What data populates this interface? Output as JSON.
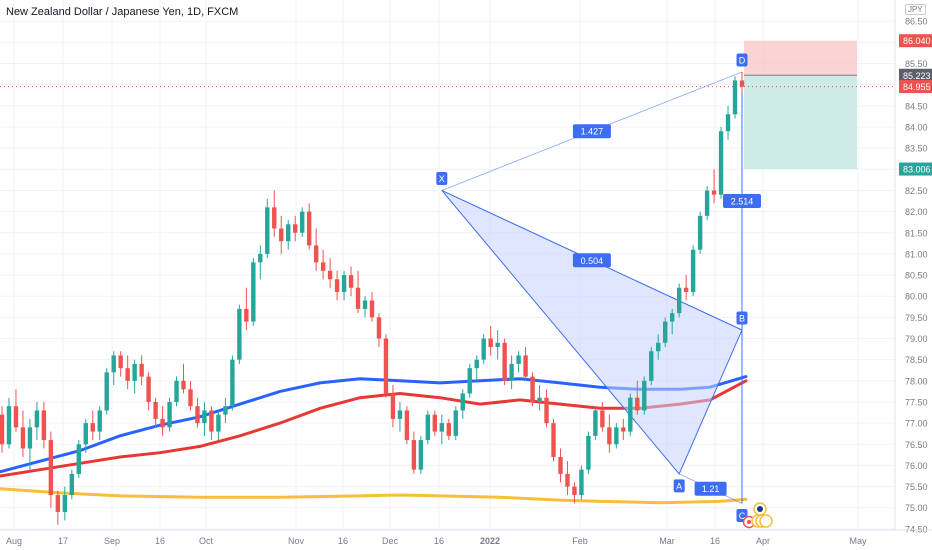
{
  "header": {
    "title": "New Zealand Dollar / Japanese Yen, 1D, FXCM",
    "currency_badge": "JPY"
  },
  "colors": {
    "up": "#26a69a",
    "down": "#ef5350",
    "ma_fast": "#2962ff",
    "ma_mid": "#e53935",
    "ma_slow": "#f6be3b",
    "pattern_fill": "#c7d2fe",
    "pattern_stroke": "#3d6df5",
    "stop_zone": "#f8c4c4",
    "target_zone": "#c3e6df"
  },
  "chart_data": {
    "type": "candlestick",
    "symbol": "NZDJPY",
    "timeframe": "1D",
    "x_tick_labels": [
      "Aug",
      "17",
      "Sep",
      "16",
      "Oct",
      "Nov",
      "16",
      "Dec",
      "16",
      "2022",
      "Feb",
      "Mar",
      "16",
      "Apr",
      "May"
    ],
    "y_tick_labels": [
      "86.50",
      "86.00",
      "85.50",
      "85.00",
      "84.50",
      "84.00",
      "83.50",
      "83.00",
      "82.50",
      "82.00",
      "81.50",
      "81.00",
      "80.50",
      "80.00",
      "79.50",
      "79.00",
      "78.50",
      "78.00",
      "77.50",
      "77.00",
      "76.50",
      "76.00",
      "75.50",
      "75.00",
      "74.50"
    ],
    "ylim": [
      74.45,
      86.6
    ],
    "price_labels": [
      {
        "value": "86.040",
        "role": "stop"
      },
      {
        "value": "85.223",
        "role": "entry"
      },
      {
        "value": "84.955",
        "role": "last"
      },
      {
        "value": "83.006",
        "role": "target"
      }
    ],
    "pattern": {
      "points": [
        {
          "label": "X",
          "value": 82.5
        },
        {
          "label": "A",
          "value": 75.8
        },
        {
          "label": "B",
          "value": 79.2
        },
        {
          "label": "C",
          "value": 75.1
        },
        {
          "label": "D",
          "value": 85.3
        }
      ],
      "ratios": [
        {
          "label": "1.427",
          "between": "X-D"
        },
        {
          "label": "0.504",
          "between": "X-B"
        },
        {
          "label": "1.21",
          "between": "A-C"
        },
        {
          "label": "2.514",
          "between": "B-D"
        }
      ]
    },
    "moving_averages": [
      {
        "color": "ma_fast",
        "points": [
          [
            0,
            75.85
          ],
          [
            40,
            76.1
          ],
          [
            80,
            76.35
          ],
          [
            120,
            76.7
          ],
          [
            160,
            76.95
          ],
          [
            200,
            77.15
          ],
          [
            240,
            77.45
          ],
          [
            280,
            77.75
          ],
          [
            320,
            77.95
          ],
          [
            360,
            78.05
          ],
          [
            400,
            78.0
          ],
          [
            440,
            77.95
          ],
          [
            480,
            78.0
          ],
          [
            520,
            78.05
          ],
          [
            560,
            77.95
          ],
          [
            600,
            77.85
          ],
          [
            640,
            77.8
          ],
          [
            680,
            77.8
          ],
          [
            710,
            77.85
          ],
          [
            746,
            78.1
          ]
        ]
      },
      {
        "color": "ma_mid",
        "points": [
          [
            0,
            75.75
          ],
          [
            40,
            75.9
          ],
          [
            80,
            76.05
          ],
          [
            120,
            76.2
          ],
          [
            160,
            76.3
          ],
          [
            200,
            76.45
          ],
          [
            240,
            76.7
          ],
          [
            280,
            77.0
          ],
          [
            320,
            77.35
          ],
          [
            360,
            77.6
          ],
          [
            400,
            77.7
          ],
          [
            440,
            77.6
          ],
          [
            480,
            77.45
          ],
          [
            520,
            77.55
          ],
          [
            560,
            77.45
          ],
          [
            600,
            77.35
          ],
          [
            640,
            77.35
          ],
          [
            680,
            77.45
          ],
          [
            710,
            77.55
          ],
          [
            746,
            78.0
          ]
        ]
      },
      {
        "color": "ma_slow",
        "points": [
          [
            0,
            75.45
          ],
          [
            60,
            75.35
          ],
          [
            120,
            75.28
          ],
          [
            200,
            75.25
          ],
          [
            280,
            75.25
          ],
          [
            360,
            75.28
          ],
          [
            400,
            75.3
          ],
          [
            440,
            75.28
          ],
          [
            500,
            75.25
          ],
          [
            560,
            75.18
          ],
          [
            600,
            75.15
          ],
          [
            660,
            75.12
          ],
          [
            720,
            75.15
          ],
          [
            746,
            75.2
          ]
        ]
      }
    ],
    "candles": [
      [
        77.2,
        77.4,
        76.3,
        76.5
      ],
      [
        76.5,
        77.6,
        76.4,
        77.4
      ],
      [
        77.4,
        77.8,
        76.8,
        76.9
      ],
      [
        76.9,
        77.3,
        76.2,
        76.4
      ],
      [
        76.4,
        77.1,
        75.9,
        76.9
      ],
      [
        76.9,
        77.5,
        76.6,
        77.3
      ],
      [
        77.3,
        77.5,
        76.4,
        76.6
      ],
      [
        76.6,
        76.8,
        75.0,
        75.3
      ],
      [
        75.3,
        75.4,
        74.6,
        74.9
      ],
      [
        74.9,
        75.5,
        74.7,
        75.3
      ],
      [
        75.3,
        75.9,
        75.2,
        75.8
      ],
      [
        75.8,
        76.6,
        75.7,
        76.5
      ],
      [
        76.5,
        77.1,
        76.3,
        77.0
      ],
      [
        77.0,
        77.3,
        76.6,
        76.8
      ],
      [
        76.8,
        77.4,
        76.6,
        77.3
      ],
      [
        77.3,
        78.3,
        77.2,
        78.2
      ],
      [
        78.2,
        78.7,
        77.9,
        78.6
      ],
      [
        78.6,
        78.7,
        78.1,
        78.3
      ],
      [
        78.3,
        78.6,
        77.8,
        78.0
      ],
      [
        78.0,
        78.5,
        77.7,
        78.4
      ],
      [
        78.4,
        78.6,
        77.9,
        78.1
      ],
      [
        78.1,
        78.2,
        77.3,
        77.5
      ],
      [
        77.5,
        77.6,
        76.9,
        77.1
      ],
      [
        77.1,
        77.4,
        76.7,
        76.9
      ],
      [
        76.9,
        77.6,
        76.8,
        77.5
      ],
      [
        77.5,
        78.1,
        77.4,
        78.0
      ],
      [
        78.0,
        78.4,
        77.7,
        77.8
      ],
      [
        77.8,
        78.0,
        77.3,
        77.4
      ],
      [
        77.4,
        77.6,
        76.9,
        77.0
      ],
      [
        77.0,
        77.5,
        76.7,
        77.3
      ],
      [
        77.3,
        77.4,
        76.6,
        76.8
      ],
      [
        76.8,
        77.3,
        76.6,
        77.2
      ],
      [
        77.2,
        77.6,
        77.0,
        77.4
      ],
      [
        77.4,
        78.6,
        77.3,
        78.5
      ],
      [
        78.5,
        79.8,
        78.4,
        79.7
      ],
      [
        79.7,
        80.2,
        79.2,
        79.4
      ],
      [
        79.4,
        80.9,
        79.3,
        80.8
      ],
      [
        80.8,
        81.2,
        80.4,
        81.0
      ],
      [
        81.0,
        82.3,
        80.9,
        82.1
      ],
      [
        82.1,
        82.5,
        81.4,
        81.6
      ],
      [
        81.6,
        81.9,
        81.0,
        81.3
      ],
      [
        81.3,
        81.8,
        81.1,
        81.7
      ],
      [
        81.7,
        81.9,
        81.3,
        81.5
      ],
      [
        81.5,
        82.1,
        81.4,
        82.0
      ],
      [
        82.0,
        82.2,
        81.1,
        81.2
      ],
      [
        81.2,
        81.6,
        80.6,
        80.8
      ],
      [
        80.8,
        81.1,
        80.4,
        80.6
      ],
      [
        80.6,
        80.9,
        80.2,
        80.4
      ],
      [
        80.4,
        80.6,
        79.9,
        80.1
      ],
      [
        80.1,
        80.6,
        79.9,
        80.5
      ],
      [
        80.5,
        80.7,
        80.0,
        80.2
      ],
      [
        80.2,
        80.6,
        79.6,
        79.7
      ],
      [
        79.7,
        80.0,
        79.5,
        79.9
      ],
      [
        79.9,
        80.1,
        79.4,
        79.5
      ],
      [
        79.5,
        79.6,
        78.8,
        79.0
      ],
      [
        79.0,
        79.1,
        77.6,
        77.7
      ],
      [
        77.7,
        77.9,
        76.9,
        77.1
      ],
      [
        77.1,
        77.5,
        76.8,
        77.3
      ],
      [
        77.3,
        77.4,
        76.5,
        76.6
      ],
      [
        76.6,
        76.8,
        75.8,
        75.9
      ],
      [
        75.9,
        76.7,
        75.8,
        76.6
      ],
      [
        76.6,
        77.3,
        76.5,
        77.2
      ],
      [
        77.2,
        77.3,
        76.7,
        76.8
      ],
      [
        76.8,
        77.2,
        76.5,
        77.0
      ],
      [
        77.0,
        77.1,
        76.6,
        76.7
      ],
      [
        76.7,
        77.4,
        76.6,
        77.3
      ],
      [
        77.3,
        77.8,
        77.1,
        77.7
      ],
      [
        77.7,
        78.4,
        77.6,
        78.3
      ],
      [
        78.3,
        78.6,
        78.0,
        78.5
      ],
      [
        78.5,
        79.1,
        78.4,
        79.0
      ],
      [
        79.0,
        79.3,
        78.6,
        78.8
      ],
      [
        78.8,
        79.2,
        78.5,
        78.9
      ],
      [
        78.9,
        79.0,
        77.9,
        78.0
      ],
      [
        78.0,
        78.6,
        77.8,
        78.4
      ],
      [
        78.4,
        78.7,
        78.2,
        78.6
      ],
      [
        78.6,
        78.8,
        78.0,
        78.1
      ],
      [
        78.1,
        78.2,
        77.4,
        77.5
      ],
      [
        77.5,
        77.9,
        77.3,
        77.6
      ],
      [
        77.6,
        77.8,
        76.9,
        77.0
      ],
      [
        77.0,
        77.1,
        76.1,
        76.2
      ],
      [
        76.2,
        76.4,
        75.6,
        75.8
      ],
      [
        75.8,
        76.1,
        75.3,
        75.5
      ],
      [
        75.5,
        75.6,
        75.1,
        75.3
      ],
      [
        75.3,
        76.0,
        75.2,
        75.9
      ],
      [
        75.9,
        76.8,
        75.8,
        76.7
      ],
      [
        76.7,
        77.4,
        76.6,
        77.3
      ],
      [
        77.3,
        77.5,
        76.8,
        76.9
      ],
      [
        76.9,
        77.2,
        76.3,
        76.5
      ],
      [
        76.5,
        77.0,
        76.4,
        76.9
      ],
      [
        76.9,
        77.1,
        76.6,
        76.8
      ],
      [
        76.8,
        77.7,
        76.7,
        77.6
      ],
      [
        77.6,
        78.0,
        77.2,
        77.3
      ],
      [
        77.3,
        78.1,
        77.2,
        78.0
      ],
      [
        78.0,
        78.8,
        77.9,
        78.7
      ],
      [
        78.7,
        79.1,
        78.5,
        78.9
      ],
      [
        78.9,
        79.5,
        78.8,
        79.4
      ],
      [
        79.4,
        79.7,
        79.1,
        79.6
      ],
      [
        79.6,
        80.3,
        79.5,
        80.2
      ],
      [
        80.2,
        80.5,
        79.9,
        80.1
      ],
      [
        80.1,
        81.2,
        80.0,
        81.1
      ],
      [
        81.1,
        82.0,
        81.0,
        81.9
      ],
      [
        81.9,
        82.6,
        81.8,
        82.5
      ],
      [
        82.5,
        83.0,
        82.2,
        82.4
      ],
      [
        82.4,
        84.0,
        82.3,
        83.9
      ],
      [
        83.9,
        84.5,
        83.7,
        84.3
      ],
      [
        84.3,
        85.2,
        84.2,
        85.1
      ],
      [
        85.1,
        85.3,
        84.8,
        84.95
      ]
    ]
  }
}
